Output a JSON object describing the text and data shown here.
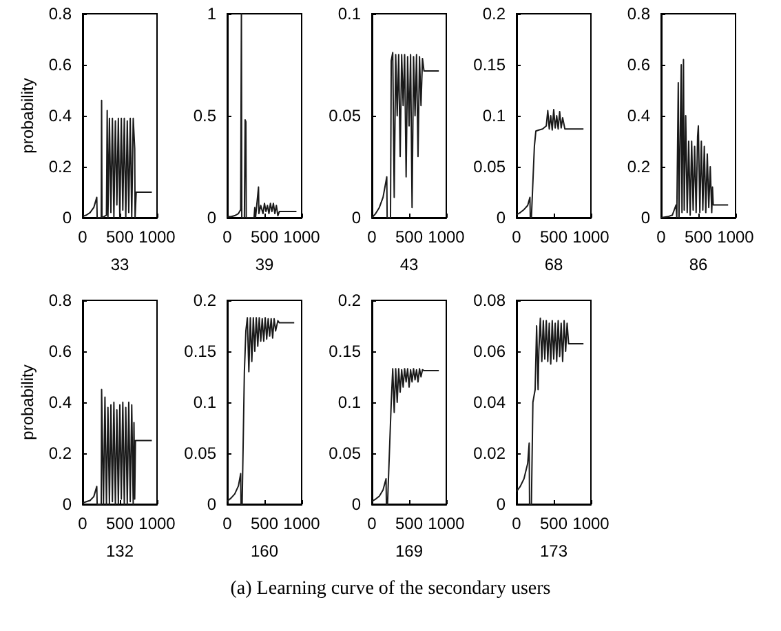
{
  "chart_data": [
    {
      "type": "line",
      "xlabel": "33",
      "ylabel": "probability",
      "xlim": [
        0,
        1000
      ],
      "xticks": [
        0,
        500,
        1000
      ],
      "ylim": [
        0,
        0.8
      ],
      "yticks": [
        0,
        0.2,
        0.4,
        0.6,
        0.8
      ],
      "series": [
        {
          "color": "#1a1a1a",
          "x": [
            0,
            50,
            100,
            150,
            190,
            195,
            250,
            255,
            260,
            320,
            330,
            340,
            360,
            380,
            400,
            420,
            440,
            460,
            480,
            500,
            520,
            540,
            560,
            580,
            600,
            620,
            640,
            660,
            680,
            700,
            705,
            720,
            930
          ],
          "values": [
            0.005,
            0.01,
            0.02,
            0.04,
            0.08,
            0,
            0,
            0.46,
            0,
            0.01,
            0.42,
            0,
            0.39,
            0.02,
            0.39,
            0,
            0.38,
            0.05,
            0.39,
            0,
            0.39,
            0.03,
            0.39,
            0,
            0.38,
            0.02,
            0.39,
            0,
            0.39,
            0.27,
            0,
            0.1,
            0.1
          ]
        }
      ]
    },
    {
      "type": "line",
      "xlabel": "39",
      "xlim": [
        0,
        1000
      ],
      "xticks": [
        0,
        500,
        1000
      ],
      "ylim": [
        0,
        1
      ],
      "yticks": [
        0,
        0.5,
        1
      ],
      "series": [
        {
          "color": "#1a1a1a",
          "x": [
            0,
            50,
            100,
            150,
            180,
            190,
            195,
            230,
            240,
            250,
            255,
            360,
            370,
            380,
            420,
            425,
            450,
            480,
            500,
            520,
            540,
            560,
            580,
            600,
            620,
            640,
            660,
            680,
            700,
            930
          ],
          "values": [
            0.005,
            0.005,
            0.01,
            0.02,
            0.04,
            1,
            0,
            0,
            0.48,
            0.47,
            0,
            0,
            0.05,
            0,
            0.15,
            0.02,
            0.06,
            0.02,
            0.07,
            0.03,
            0.06,
            0.02,
            0.07,
            0.03,
            0.07,
            0.02,
            0.06,
            0.01,
            0.03,
            0.03
          ]
        }
      ]
    },
    {
      "type": "line",
      "xlabel": "43",
      "xlim": [
        0,
        1000
      ],
      "xticks": [
        0,
        500,
        1000
      ],
      "ylim": [
        0,
        0.1
      ],
      "yticks": [
        0,
        0.05,
        0.1
      ],
      "series": [
        {
          "color": "#1a1a1a",
          "x": [
            0,
            50,
            100,
            150,
            200,
            205,
            250,
            260,
            280,
            300,
            320,
            340,
            360,
            380,
            400,
            420,
            440,
            460,
            480,
            500,
            520,
            540,
            560,
            580,
            600,
            620,
            640,
            660,
            680,
            700,
            900
          ],
          "values": [
            0,
            0.002,
            0.005,
            0.01,
            0.02,
            0,
            0,
            0.077,
            0.081,
            0.01,
            0.08,
            0.05,
            0.08,
            0.03,
            0.08,
            0.055,
            0.08,
            0.02,
            0.079,
            0.045,
            0.08,
            0.005,
            0.079,
            0.05,
            0.08,
            0.03,
            0.079,
            0.055,
            0.078,
            0.072,
            0.072
          ]
        }
      ]
    },
    {
      "type": "line",
      "xlabel": "68",
      "xlim": [
        0,
        1000
      ],
      "xticks": [
        0,
        500,
        1000
      ],
      "ylim": [
        0,
        0.2
      ],
      "yticks": [
        0,
        0.05,
        0.1,
        0.15,
        0.2
      ],
      "series": [
        {
          "color": "#1a1a1a",
          "x": [
            0,
            50,
            100,
            150,
            180,
            185,
            200,
            240,
            260,
            300,
            350,
            400,
            420,
            440,
            460,
            480,
            500,
            520,
            540,
            560,
            580,
            600,
            620,
            650,
            700,
            900
          ],
          "values": [
            0.003,
            0.005,
            0.008,
            0.012,
            0.02,
            0,
            0,
            0.07,
            0.085,
            0.086,
            0.087,
            0.09,
            0.105,
            0.087,
            0.1,
            0.086,
            0.106,
            0.088,
            0.1,
            0.087,
            0.104,
            0.088,
            0.098,
            0.087,
            0.087,
            0.087
          ]
        }
      ]
    },
    {
      "type": "line",
      "xlabel": "86",
      "xlim": [
        0,
        1000
      ],
      "xticks": [
        0,
        500,
        1000
      ],
      "ylim": [
        0,
        0.8
      ],
      "yticks": [
        0,
        0.2,
        0.4,
        0.6,
        0.8
      ],
      "series": [
        {
          "color": "#1a1a1a",
          "x": [
            0,
            100,
            150,
            200,
            210,
            230,
            240,
            270,
            280,
            300,
            310,
            330,
            350,
            370,
            390,
            410,
            430,
            450,
            470,
            490,
            500,
            520,
            540,
            560,
            580,
            600,
            620,
            640,
            660,
            680,
            690,
            700,
            900
          ],
          "values": [
            0,
            0.005,
            0.01,
            0.05,
            0,
            0.53,
            0,
            0.6,
            0.02,
            0.62,
            0.03,
            0.4,
            0.02,
            0.3,
            0.01,
            0.3,
            0.03,
            0.28,
            0.02,
            0.32,
            0.36,
            0.02,
            0.3,
            0.03,
            0.28,
            0.02,
            0.25,
            0.04,
            0.2,
            0.02,
            0.12,
            0.05,
            0.05
          ]
        }
      ]
    },
    {
      "type": "line",
      "xlabel": "132",
      "ylabel": "probability",
      "xlim": [
        0,
        1000
      ],
      "xticks": [
        0,
        500,
        1000
      ],
      "ylim": [
        0,
        0.8
      ],
      "yticks": [
        0,
        0.2,
        0.4,
        0.6,
        0.8
      ],
      "series": [
        {
          "color": "#1a1a1a",
          "x": [
            0,
            50,
            100,
            150,
            190,
            195,
            250,
            255,
            280,
            300,
            320,
            340,
            360,
            380,
            400,
            420,
            440,
            460,
            480,
            500,
            520,
            540,
            560,
            580,
            600,
            620,
            640,
            660,
            680,
            690,
            700,
            710,
            930
          ],
          "values": [
            0.005,
            0.01,
            0.015,
            0.03,
            0.07,
            0,
            0,
            0.45,
            0,
            0.42,
            0,
            0.38,
            0,
            0.39,
            0.01,
            0.4,
            0,
            0.37,
            0,
            0.39,
            0.02,
            0.4,
            0,
            0.38,
            0,
            0.4,
            0.01,
            0.39,
            0,
            0.32,
            0.02,
            0.25,
            0.25
          ]
        }
      ]
    },
    {
      "type": "line",
      "xlabel": "160",
      "xlim": [
        0,
        1000
      ],
      "xticks": [
        0,
        500,
        1000
      ],
      "ylim": [
        0,
        0.2
      ],
      "yticks": [
        0,
        0.05,
        0.1,
        0.15,
        0.2
      ],
      "series": [
        {
          "color": "#1a1a1a",
          "x": [
            0,
            50,
            100,
            150,
            180,
            185,
            200,
            230,
            250,
            270,
            290,
            310,
            330,
            350,
            370,
            390,
            410,
            430,
            450,
            470,
            490,
            510,
            530,
            550,
            570,
            590,
            610,
            630,
            650,
            680,
            700,
            900
          ],
          "values": [
            0.003,
            0.006,
            0.01,
            0.018,
            0.03,
            0,
            0,
            0.13,
            0.17,
            0.183,
            0.13,
            0.183,
            0.14,
            0.183,
            0.15,
            0.183,
            0.155,
            0.183,
            0.16,
            0.182,
            0.16,
            0.183,
            0.162,
            0.182,
            0.165,
            0.182,
            0.163,
            0.182,
            0.17,
            0.18,
            0.178,
            0.178
          ]
        }
      ]
    },
    {
      "type": "line",
      "xlabel": "169",
      "xlim": [
        0,
        1000
      ],
      "xticks": [
        0,
        500,
        1000
      ],
      "ylim": [
        0,
        0.2
      ],
      "yticks": [
        0,
        0.05,
        0.1,
        0.15,
        0.2
      ],
      "series": [
        {
          "color": "#1a1a1a",
          "x": [
            0,
            50,
            100,
            150,
            190,
            195,
            210,
            240,
            260,
            280,
            300,
            320,
            340,
            360,
            380,
            400,
            420,
            440,
            460,
            480,
            500,
            520,
            540,
            560,
            580,
            600,
            620,
            640,
            660,
            680,
            700,
            900
          ],
          "values": [
            0.003,
            0.005,
            0.008,
            0.014,
            0.025,
            0,
            0,
            0.06,
            0.1,
            0.133,
            0.09,
            0.133,
            0.1,
            0.133,
            0.11,
            0.132,
            0.115,
            0.133,
            0.12,
            0.133,
            0.115,
            0.132,
            0.12,
            0.133,
            0.122,
            0.132,
            0.12,
            0.133,
            0.125,
            0.132,
            0.131,
            0.131
          ]
        }
      ]
    },
    {
      "type": "line",
      "xlabel": "173",
      "xlim": [
        0,
        1000
      ],
      "xticks": [
        0,
        500,
        1000
      ],
      "ylim": [
        0,
        0.08
      ],
      "yticks": [
        0,
        0.02,
        0.04,
        0.06,
        0.08
      ],
      "annotations": [
        "(a) Learning curve of the secondary users"
      ],
      "series": [
        {
          "color": "#1a1a1a",
          "x": [
            0,
            50,
            100,
            150,
            170,
            175,
            200,
            220,
            250,
            270,
            290,
            300,
            320,
            340,
            360,
            380,
            400,
            420,
            440,
            460,
            480,
            500,
            520,
            540,
            560,
            580,
            600,
            620,
            640,
            660,
            680,
            700,
            900
          ],
          "values": [
            0.005,
            0.007,
            0.01,
            0.016,
            0.024,
            0,
            0,
            0.04,
            0.045,
            0.07,
            0.045,
            0.06,
            0.073,
            0.056,
            0.072,
            0.057,
            0.072,
            0.056,
            0.071,
            0.055,
            0.072,
            0.057,
            0.071,
            0.056,
            0.072,
            0.058,
            0.071,
            0.056,
            0.072,
            0.06,
            0.071,
            0.063,
            0.063
          ]
        }
      ]
    }
  ]
}
